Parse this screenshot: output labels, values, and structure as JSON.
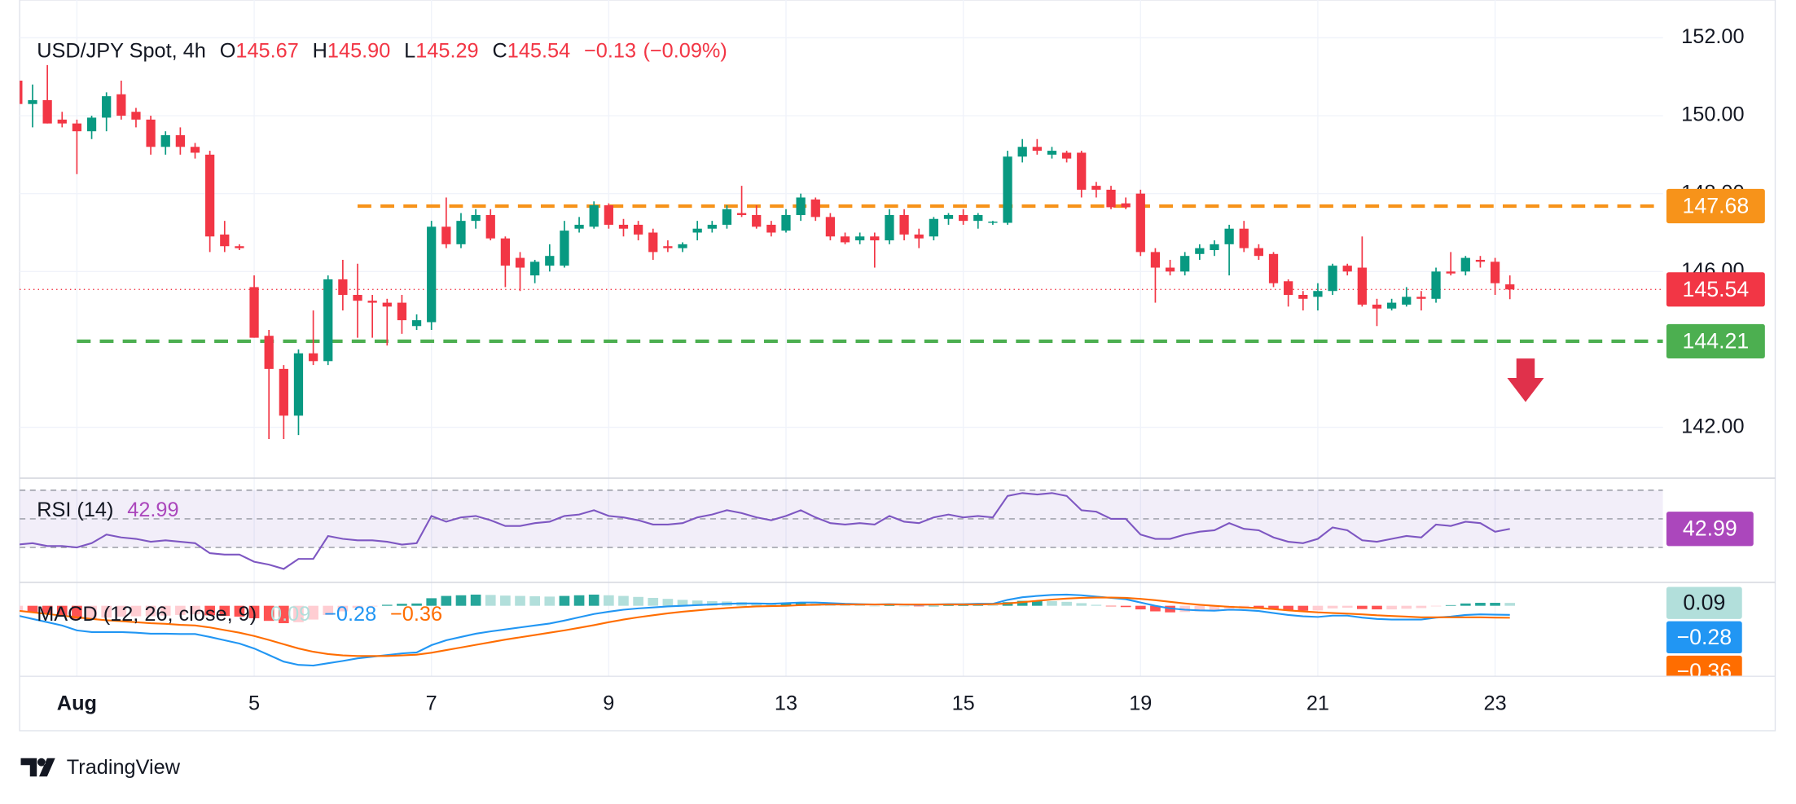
{
  "brand": "TradingView",
  "chart_data": [
    {
      "type": "candlestick",
      "title": "USD/JPY Spot, 4h",
      "ohlc_header": [
        {
          "key": "O",
          "value": 145.67,
          "label": "145.67"
        },
        {
          "key": "H",
          "value": 145.9,
          "label": "145.90"
        },
        {
          "key": "L",
          "value": 145.29,
          "label": "145.29"
        },
        {
          "key": "C",
          "value": 145.54,
          "label": "145.54"
        }
      ],
      "change": {
        "value": -0.13,
        "label": "−0.13"
      },
      "change_pct": {
        "value": -0.09,
        "label": "(−0.09%)"
      },
      "up_color": "#089981",
      "down_color": "#f23645",
      "categories": [
        null,
        null,
        null,
        null,
        "Aug",
        null,
        null,
        null,
        null,
        null,
        null,
        null,
        null,
        null,
        null,
        null,
        "5",
        null,
        null,
        null,
        null,
        null,
        null,
        null,
        null,
        null,
        null,
        null,
        "7",
        null,
        null,
        null,
        null,
        null,
        null,
        null,
        null,
        null,
        null,
        null,
        "9",
        null,
        null,
        null,
        null,
        null,
        null,
        null,
        null,
        null,
        null,
        null,
        "13",
        null,
        null,
        null,
        null,
        null,
        null,
        null,
        null,
        null,
        null,
        null,
        "15",
        null,
        null,
        null,
        null,
        null,
        null,
        null,
        null,
        null,
        null,
        null,
        "19",
        null,
        null,
        null,
        null,
        null,
        null,
        null,
        null,
        null,
        null,
        null,
        "21",
        null,
        null,
        null,
        null,
        null,
        null,
        null,
        null,
        null,
        null,
        null,
        "23",
        null
      ],
      "candles": [
        [
          150.9,
          151.0,
          150.2,
          150.3
        ],
        [
          150.3,
          150.8,
          149.7,
          150.4
        ],
        [
          150.4,
          151.3,
          149.8,
          149.8
        ],
        [
          149.9,
          150.1,
          149.7,
          149.8
        ],
        [
          149.8,
          149.9,
          148.5,
          149.6
        ],
        [
          149.6,
          150.0,
          149.4,
          149.95
        ],
        [
          149.95,
          150.6,
          149.6,
          150.5
        ],
        [
          150.55,
          150.9,
          149.9,
          150.0
        ],
        [
          150.1,
          150.2,
          149.7,
          149.9
        ],
        [
          149.9,
          150.0,
          149.0,
          149.2
        ],
        [
          149.2,
          149.6,
          149.0,
          149.5
        ],
        [
          149.5,
          149.7,
          149.0,
          149.2
        ],
        [
          149.2,
          149.3,
          148.9,
          149.05
        ],
        [
          149.0,
          149.1,
          146.5,
          146.9
        ],
        [
          146.95,
          147.3,
          146.5,
          146.65
        ],
        [
          146.65,
          146.7,
          146.55,
          146.6
        ],
        [
          145.6,
          145.9,
          144.3,
          144.3
        ],
        [
          144.35,
          144.5,
          141.7,
          143.5
        ],
        [
          143.5,
          143.6,
          141.7,
          142.3
        ],
        [
          142.3,
          144.0,
          141.8,
          143.9
        ],
        [
          143.9,
          145.0,
          143.6,
          143.7
        ],
        [
          143.7,
          145.9,
          143.6,
          145.8
        ],
        [
          145.8,
          146.3,
          145.0,
          145.4
        ],
        [
          145.4,
          146.2,
          144.3,
          145.25
        ],
        [
          145.25,
          145.4,
          144.3,
          145.2
        ],
        [
          145.2,
          145.3,
          144.1,
          145.1
        ],
        [
          145.2,
          145.4,
          144.4,
          144.75
        ],
        [
          144.6,
          144.9,
          144.5,
          144.75
        ],
        [
          144.7,
          147.3,
          144.5,
          147.15
        ],
        [
          147.15,
          147.9,
          146.6,
          146.7
        ],
        [
          146.7,
          147.5,
          146.6,
          147.3
        ],
        [
          147.3,
          147.6,
          147.1,
          147.45
        ],
        [
          147.45,
          147.6,
          146.8,
          146.85
        ],
        [
          146.85,
          146.9,
          145.6,
          146.15
        ],
        [
          146.35,
          146.5,
          145.5,
          146.1
        ],
        [
          145.9,
          146.3,
          145.7,
          146.25
        ],
        [
          146.15,
          146.7,
          146.0,
          146.4
        ],
        [
          146.15,
          147.3,
          146.1,
          147.05
        ],
        [
          147.1,
          147.4,
          147.0,
          147.2
        ],
        [
          147.15,
          147.8,
          147.1,
          147.7
        ],
        [
          147.7,
          147.75,
          147.1,
          147.2
        ],
        [
          147.2,
          147.35,
          146.9,
          147.1
        ],
        [
          147.2,
          147.3,
          146.8,
          146.95
        ],
        [
          147.0,
          147.1,
          146.3,
          146.5
        ],
        [
          146.65,
          146.8,
          146.5,
          146.6
        ],
        [
          146.6,
          146.75,
          146.5,
          146.7
        ],
        [
          147.0,
          147.3,
          146.8,
          147.1
        ],
        [
          147.1,
          147.3,
          147.0,
          147.2
        ],
        [
          147.2,
          147.7,
          147.1,
          147.6
        ],
        [
          147.5,
          148.2,
          147.4,
          147.45
        ],
        [
          147.45,
          147.7,
          147.1,
          147.15
        ],
        [
          147.2,
          147.3,
          146.9,
          147.0
        ],
        [
          147.05,
          147.6,
          147.0,
          147.45
        ],
        [
          147.45,
          148.0,
          147.3,
          147.9
        ],
        [
          147.85,
          147.9,
          147.3,
          147.4
        ],
        [
          147.4,
          147.5,
          146.8,
          146.9
        ],
        [
          146.9,
          147.0,
          146.7,
          146.75
        ],
        [
          146.8,
          147.0,
          146.7,
          146.9
        ],
        [
          146.9,
          147.0,
          146.1,
          146.8
        ],
        [
          146.8,
          147.6,
          146.7,
          147.45
        ],
        [
          147.45,
          147.6,
          146.8,
          146.95
        ],
        [
          146.95,
          147.1,
          146.6,
          146.85
        ],
        [
          146.9,
          147.4,
          146.8,
          147.35
        ],
        [
          147.35,
          147.5,
          147.2,
          147.45
        ],
        [
          147.45,
          147.6,
          147.2,
          147.3
        ],
        [
          147.3,
          147.5,
          147.1,
          147.45
        ],
        [
          147.25,
          147.3,
          147.2,
          147.28
        ],
        [
          147.25,
          149.1,
          147.2,
          148.95
        ],
        [
          148.95,
          149.4,
          148.8,
          149.2
        ],
        [
          149.2,
          149.4,
          149.0,
          149.1
        ],
        [
          149.0,
          149.2,
          148.9,
          149.1
        ],
        [
          149.05,
          149.1,
          148.8,
          148.9
        ],
        [
          149.05,
          149.1,
          147.9,
          148.1
        ],
        [
          148.2,
          148.3,
          147.9,
          148.1
        ],
        [
          148.1,
          148.2,
          147.6,
          147.65
        ],
        [
          147.75,
          147.9,
          147.6,
          147.65
        ],
        [
          148.0,
          148.1,
          146.4,
          146.5
        ],
        [
          146.5,
          146.6,
          145.2,
          146.1
        ],
        [
          146.1,
          146.3,
          145.9,
          146.0
        ],
        [
          146.0,
          146.5,
          145.9,
          146.4
        ],
        [
          146.45,
          146.7,
          146.3,
          146.6
        ],
        [
          146.55,
          146.8,
          146.4,
          146.7
        ],
        [
          146.7,
          147.2,
          145.9,
          147.1
        ],
        [
          147.1,
          147.3,
          146.5,
          146.6
        ],
        [
          146.6,
          146.7,
          146.3,
          146.4
        ],
        [
          146.45,
          146.5,
          145.6,
          145.7
        ],
        [
          145.75,
          145.8,
          145.1,
          145.4
        ],
        [
          145.4,
          145.5,
          145.0,
          145.3
        ],
        [
          145.35,
          145.7,
          145.0,
          145.5
        ],
        [
          145.5,
          146.2,
          145.4,
          146.15
        ],
        [
          146.15,
          146.2,
          145.9,
          146.0
        ],
        [
          146.1,
          146.9,
          145.1,
          145.15
        ],
        [
          145.15,
          145.3,
          144.6,
          145.05
        ],
        [
          145.05,
          145.3,
          145.0,
          145.2
        ],
        [
          145.15,
          145.6,
          145.1,
          145.35
        ],
        [
          145.35,
          145.5,
          145.0,
          145.3
        ],
        [
          145.3,
          146.1,
          145.2,
          146.0
        ],
        [
          146.0,
          146.5,
          145.9,
          145.95
        ],
        [
          146.0,
          146.4,
          145.9,
          146.35
        ],
        [
          146.3,
          146.4,
          146.1,
          146.25
        ],
        [
          146.25,
          146.35,
          145.4,
          145.7
        ],
        [
          145.67,
          145.9,
          145.29,
          145.54
        ]
      ],
      "ylim": [
        140.71,
        152.97
      ],
      "yticks": [
        {
          "value": 142,
          "label": "142.00"
        },
        {
          "value": 146,
          "label": "146.00"
        },
        {
          "value": 148,
          "label": "148.00"
        },
        {
          "value": 150,
          "label": "150.00"
        },
        {
          "value": 152,
          "label": "152.00"
        }
      ],
      "grid": true,
      "last_price": {
        "value": 145.54,
        "color": "#f23645"
      },
      "hlines": [
        {
          "value": 147.68,
          "color": "#f7931a"
        },
        {
          "value": 144.21,
          "color": "#4caf50"
        }
      ]
    },
    {
      "type": "line",
      "title": "RSI (14)",
      "series": [
        {
          "color": "#7e57c2",
          "label_color": "#ab47bc",
          "values": [
            32,
            33,
            31,
            31,
            30,
            33,
            39,
            37,
            36,
            34,
            35,
            34,
            33,
            26,
            25,
            25,
            20,
            18,
            15,
            22,
            22,
            38,
            36,
            35,
            35,
            34,
            32,
            33,
            52,
            48,
            51,
            52,
            49,
            45,
            45,
            47,
            48,
            52,
            53,
            56,
            52,
            51,
            49,
            46,
            46,
            47,
            51,
            53,
            56,
            54,
            51,
            49,
            52,
            56,
            51,
            47,
            46,
            47,
            46,
            52,
            48,
            47,
            51,
            53,
            51,
            52,
            51,
            66,
            68,
            67,
            68,
            66,
            56,
            55,
            50,
            50,
            39,
            36,
            36,
            39,
            41,
            42,
            47,
            43,
            42,
            37,
            34,
            33,
            36,
            44,
            42,
            35,
            34,
            36,
            38,
            37,
            46,
            45,
            48,
            47,
            41,
            42.99
          ]
        }
      ],
      "ylim": [
        6,
        78
      ],
      "levels": [
        70,
        50,
        30
      ],
      "band_color": "rgba(126,87,194,0.1)"
    },
    {
      "type": "macd",
      "title": "MACD (12, 26, close, 9)",
      "ylim": [
        -2.13,
        0.66
      ],
      "histogram": {
        "last_label": "0.09",
        "label_color": "#b2dfdb",
        "colors": {
          "rise_up": "#26a69a",
          "fall_up": "#b2dfdb",
          "fall_down": "#ff5252",
          "rise_down": "#ffcdd2"
        },
        "values": [
          -0.15,
          -0.2,
          -0.25,
          -0.3,
          -0.4,
          -0.4,
          -0.36,
          -0.33,
          -0.32,
          -0.32,
          -0.3,
          -0.28,
          -0.26,
          -0.29,
          -0.31,
          -0.33,
          -0.38,
          -0.46,
          -0.53,
          -0.5,
          -0.42,
          -0.28,
          -0.17,
          -0.07,
          -0.02,
          0.03,
          0.06,
          0.07,
          0.23,
          0.3,
          0.32,
          0.34,
          0.33,
          0.31,
          0.3,
          0.29,
          0.28,
          0.3,
          0.32,
          0.34,
          0.32,
          0.3,
          0.27,
          0.24,
          0.21,
          0.18,
          0.16,
          0.14,
          0.13,
          0.11,
          0.09,
          0.07,
          0.08,
          0.08,
          0.07,
          0.04,
          0.02,
          0.01,
          0.0,
          0.01,
          0.0,
          -0.01,
          0.0,
          0.01,
          0.01,
          0.02,
          0.01,
          0.11,
          0.15,
          0.15,
          0.14,
          0.12,
          0.08,
          0.03,
          -0.01,
          -0.04,
          -0.11,
          -0.17,
          -0.2,
          -0.19,
          -0.17,
          -0.15,
          -0.09,
          -0.08,
          -0.09,
          -0.12,
          -0.14,
          -0.15,
          -0.14,
          -0.08,
          -0.06,
          -0.1,
          -0.11,
          -0.11,
          -0.09,
          -0.07,
          -0.01,
          0.02,
          0.07,
          0.09,
          0.09,
          0.087
        ]
      },
      "macd": {
        "color": "#2196f3",
        "last_label": "−0.28",
        "values": [
          -0.3,
          -0.4,
          -0.5,
          -0.6,
          -0.75,
          -0.8,
          -0.8,
          -0.8,
          -0.82,
          -0.85,
          -0.85,
          -0.86,
          -0.86,
          -0.95,
          -1.05,
          -1.15,
          -1.3,
          -1.5,
          -1.7,
          -1.8,
          -1.82,
          -1.75,
          -1.68,
          -1.6,
          -1.55,
          -1.5,
          -1.45,
          -1.42,
          -1.2,
          -1.05,
          -0.95,
          -0.85,
          -0.78,
          -0.72,
          -0.66,
          -0.6,
          -0.54,
          -0.45,
          -0.35,
          -0.25,
          -0.18,
          -0.12,
          -0.08,
          -0.05,
          -0.02,
          0.0,
          0.02,
          0.04,
          0.06,
          0.07,
          0.07,
          0.06,
          0.08,
          0.1,
          0.1,
          0.08,
          0.06,
          0.05,
          0.04,
          0.05,
          0.04,
          0.03,
          0.04,
          0.05,
          0.05,
          0.06,
          0.06,
          0.18,
          0.26,
          0.3,
          0.33,
          0.34,
          0.32,
          0.28,
          0.24,
          0.2,
          0.1,
          0.0,
          -0.08,
          -0.12,
          -0.14,
          -0.15,
          -0.12,
          -0.13,
          -0.16,
          -0.22,
          -0.28,
          -0.32,
          -0.34,
          -0.3,
          -0.3,
          -0.36,
          -0.4,
          -0.42,
          -0.42,
          -0.42,
          -0.36,
          -0.33,
          -0.28,
          -0.26,
          -0.27,
          -0.278
        ]
      },
      "signal": {
        "color": "#ff6d00",
        "last_label": "−0.36",
        "values": [
          -0.15,
          -0.2,
          -0.25,
          -0.3,
          -0.35,
          -0.4,
          -0.44,
          -0.47,
          -0.5,
          -0.53,
          -0.55,
          -0.58,
          -0.6,
          -0.66,
          -0.74,
          -0.82,
          -0.92,
          -1.04,
          -1.17,
          -1.3,
          -1.4,
          -1.47,
          -1.51,
          -1.53,
          -1.53,
          -1.53,
          -1.51,
          -1.49,
          -1.43,
          -1.35,
          -1.27,
          -1.19,
          -1.11,
          -1.03,
          -0.96,
          -0.89,
          -0.82,
          -0.75,
          -0.67,
          -0.59,
          -0.5,
          -0.42,
          -0.35,
          -0.29,
          -0.23,
          -0.18,
          -0.14,
          -0.1,
          -0.07,
          -0.04,
          -0.02,
          -0.01,
          0.0,
          0.02,
          0.03,
          0.04,
          0.04,
          0.04,
          0.04,
          0.04,
          0.04,
          0.04,
          0.04,
          0.04,
          0.04,
          0.04,
          0.05,
          0.07,
          0.11,
          0.15,
          0.19,
          0.22,
          0.24,
          0.25,
          0.25,
          0.24,
          0.21,
          0.17,
          0.12,
          0.07,
          0.03,
          0.0,
          -0.03,
          -0.05,
          -0.07,
          -0.1,
          -0.14,
          -0.17,
          -0.2,
          -0.22,
          -0.24,
          -0.26,
          -0.29,
          -0.31,
          -0.33,
          -0.35,
          -0.35,
          -0.35,
          -0.35,
          -0.35,
          -0.36,
          -0.365
        ]
      }
    }
  ]
}
